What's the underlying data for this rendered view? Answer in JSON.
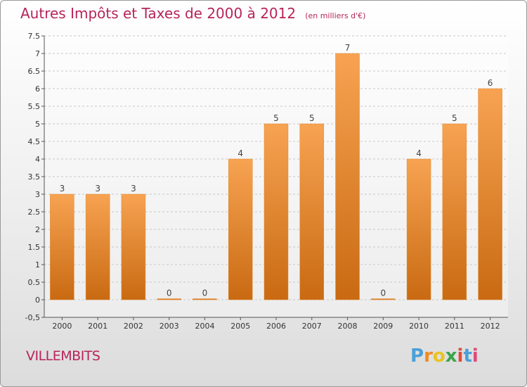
{
  "chart_data": {
    "type": "bar",
    "title": "Autres Impôts et Taxes de 2000 à 2012",
    "unit": "(en milliers d'€)",
    "categories": [
      "2000",
      "2001",
      "2002",
      "2003",
      "2004",
      "2005",
      "2006",
      "2007",
      "2008",
      "2009",
      "2010",
      "2011",
      "2012"
    ],
    "values": [
      3,
      3,
      3,
      0,
      0,
      4,
      5,
      5,
      7,
      0,
      4,
      5,
      6
    ],
    "ylim": [
      -0.5,
      7.5
    ],
    "yticks": [
      "-0,5",
      "0",
      "0.5",
      "1",
      "1.5",
      "2",
      "2.5",
      "3",
      "3.5",
      "4",
      "4.5",
      "5",
      "5.5",
      "6",
      "6.5",
      "7",
      "7.5"
    ],
    "grid": true,
    "bar_color_top": "#f7a352",
    "bar_color_bottom": "#c96a12"
  },
  "location": "VILLEMBITS",
  "logo": {
    "letters": [
      "P",
      "r",
      "o",
      "x",
      "i",
      "t",
      "i"
    ],
    "colors": [
      "#4a9fd8",
      "#f08a24",
      "#e8c422",
      "#3aa54a",
      "#e04a3a",
      "#4a9fd8",
      "#e04a7a"
    ]
  }
}
